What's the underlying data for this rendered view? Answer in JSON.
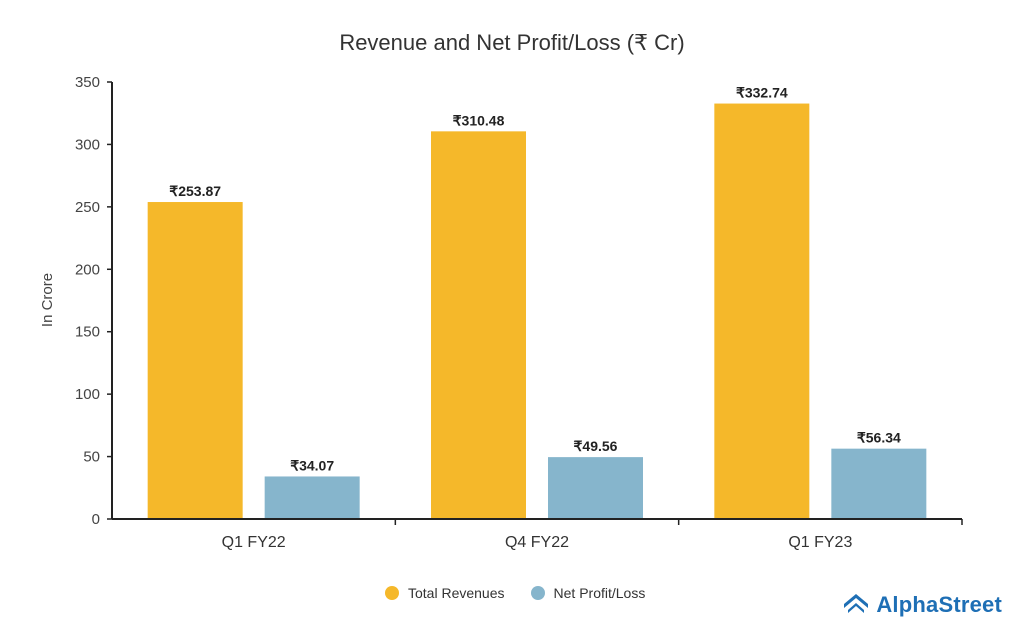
{
  "chart_data": {
    "type": "bar",
    "title": "Revenue and Net Profit/Loss (₹ Cr)",
    "ylabel": "In Crore",
    "xlabel": "",
    "ylim": [
      0,
      350
    ],
    "yticks": [
      0,
      50,
      100,
      150,
      200,
      250,
      300,
      350
    ],
    "categories": [
      "Q1 FY22",
      "Q4 FY22",
      "Q1 FY23"
    ],
    "series": [
      {
        "name": "Total Revenues",
        "values": [
          253.87,
          310.48,
          332.74
        ],
        "labels": [
          "₹253.87",
          "₹310.48",
          "₹332.74"
        ],
        "color": "#F5B82A"
      },
      {
        "name": "Net Profit/Loss",
        "values": [
          34.07,
          49.56,
          56.34
        ],
        "labels": [
          "₹34.07",
          "₹49.56",
          "₹56.34"
        ],
        "color": "#86B5CC"
      }
    ],
    "grid": false,
    "legend_position": "bottom"
  },
  "brand": {
    "name": "AlphaStreet",
    "icon": "alphastreet-logo-icon",
    "color": "#1E6FB5"
  }
}
